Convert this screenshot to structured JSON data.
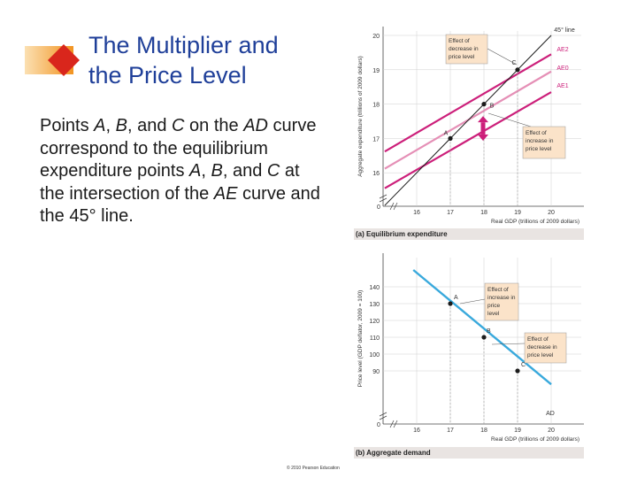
{
  "slide": {
    "title_line1": "The Multiplier and",
    "title_line2": "the Price Level",
    "body_parts": [
      {
        "text": "Points ",
        "italic": false
      },
      {
        "text": "A",
        "italic": true
      },
      {
        "text": ", ",
        "italic": false
      },
      {
        "text": "B",
        "italic": true
      },
      {
        "text": ", and ",
        "italic": false
      },
      {
        "text": "C",
        "italic": true
      },
      {
        "text": " on the ",
        "italic": false
      },
      {
        "text": "AD",
        "italic": true
      },
      {
        "text": " curve correspond to the equilibrium expenditure points ",
        "italic": false
      },
      {
        "text": "A",
        "italic": true
      },
      {
        "text": ", ",
        "italic": false
      },
      {
        "text": "B",
        "italic": true
      },
      {
        "text": ", and ",
        "italic": false
      },
      {
        "text": "C",
        "italic": true
      },
      {
        "text": " at the intersection of the ",
        "italic": false
      },
      {
        "text": "AE",
        "italic": true
      },
      {
        "text": " curve and the 45° line.",
        "italic": false
      }
    ],
    "copyright": "© 2010 Pearson Education"
  },
  "colors": {
    "title": "#1f3f99",
    "ae_strong": "#cc1f7a",
    "ae_light": "#e58fb6",
    "ad_line": "#39a9dc",
    "callout_fill": "#fbe3c9",
    "logo_orange": "#f29320",
    "logo_red": "#d9261c"
  },
  "chart_data": [
    {
      "type": "line",
      "panel_label": "(a) Equilibrium expenditure",
      "xlabel": "Real GDP (trillions of 2009 dollars)",
      "ylabel": "Aggregate expenditure (trillions of 2009 dollars)",
      "xlim": [
        15,
        20.5
      ],
      "ylim": [
        15,
        20.3
      ],
      "x_ticks": [
        16,
        17,
        18,
        19,
        20
      ],
      "y_ticks": [
        16,
        17,
        18,
        19,
        20
      ],
      "origin_label": "0",
      "series": [
        {
          "name": "45° line",
          "x": [
            15.05,
            20
          ],
          "y": [
            15.05,
            20
          ]
        },
        {
          "name": "AE2",
          "x": [
            15.05,
            20
          ],
          "y": [
            16.62,
            19.45
          ]
        },
        {
          "name": "AE0",
          "x": [
            15.05,
            20
          ],
          "y": [
            16.12,
            18.95
          ]
        },
        {
          "name": "AE1",
          "x": [
            15.05,
            20
          ],
          "y": [
            15.55,
            18.35
          ]
        }
      ],
      "points": [
        {
          "label": "A",
          "x": 17,
          "y": 17
        },
        {
          "label": "B",
          "x": 18,
          "y": 18
        },
        {
          "label": "C",
          "x": 19,
          "y": 19
        }
      ],
      "annotations": [
        {
          "text_lines": [
            "Effect of",
            "decrease in",
            "price level"
          ]
        },
        {
          "text_lines": [
            "Effect of",
            "increase in",
            "price level"
          ]
        }
      ]
    },
    {
      "type": "line",
      "panel_label": "(b) Aggregate demand",
      "xlabel": "Real GDP (trillions of 2009 dollars)",
      "ylabel": "Price level (GDP deflator, 2009 = 100)",
      "xlim": [
        15,
        20.5
      ],
      "ylim": [
        80,
        150
      ],
      "x_ticks": [
        16,
        17,
        18,
        19,
        20
      ],
      "y_ticks": [
        90,
        100,
        110,
        120,
        130,
        140
      ],
      "origin_label": "0",
      "series": [
        {
          "name": "AD",
          "x": [
            15.9,
            20
          ],
          "y": [
            150,
            82
          ]
        }
      ],
      "points": [
        {
          "label": "A",
          "x": 17,
          "y": 130
        },
        {
          "label": "B",
          "x": 18,
          "y": 110
        },
        {
          "label": "C",
          "x": 19,
          "y": 90
        }
      ],
      "annotations": [
        {
          "text_lines": [
            "Effect of",
            "increase in",
            "price",
            "level"
          ]
        },
        {
          "text_lines": [
            "Effect of",
            "decrease in",
            "price level"
          ]
        }
      ]
    }
  ]
}
